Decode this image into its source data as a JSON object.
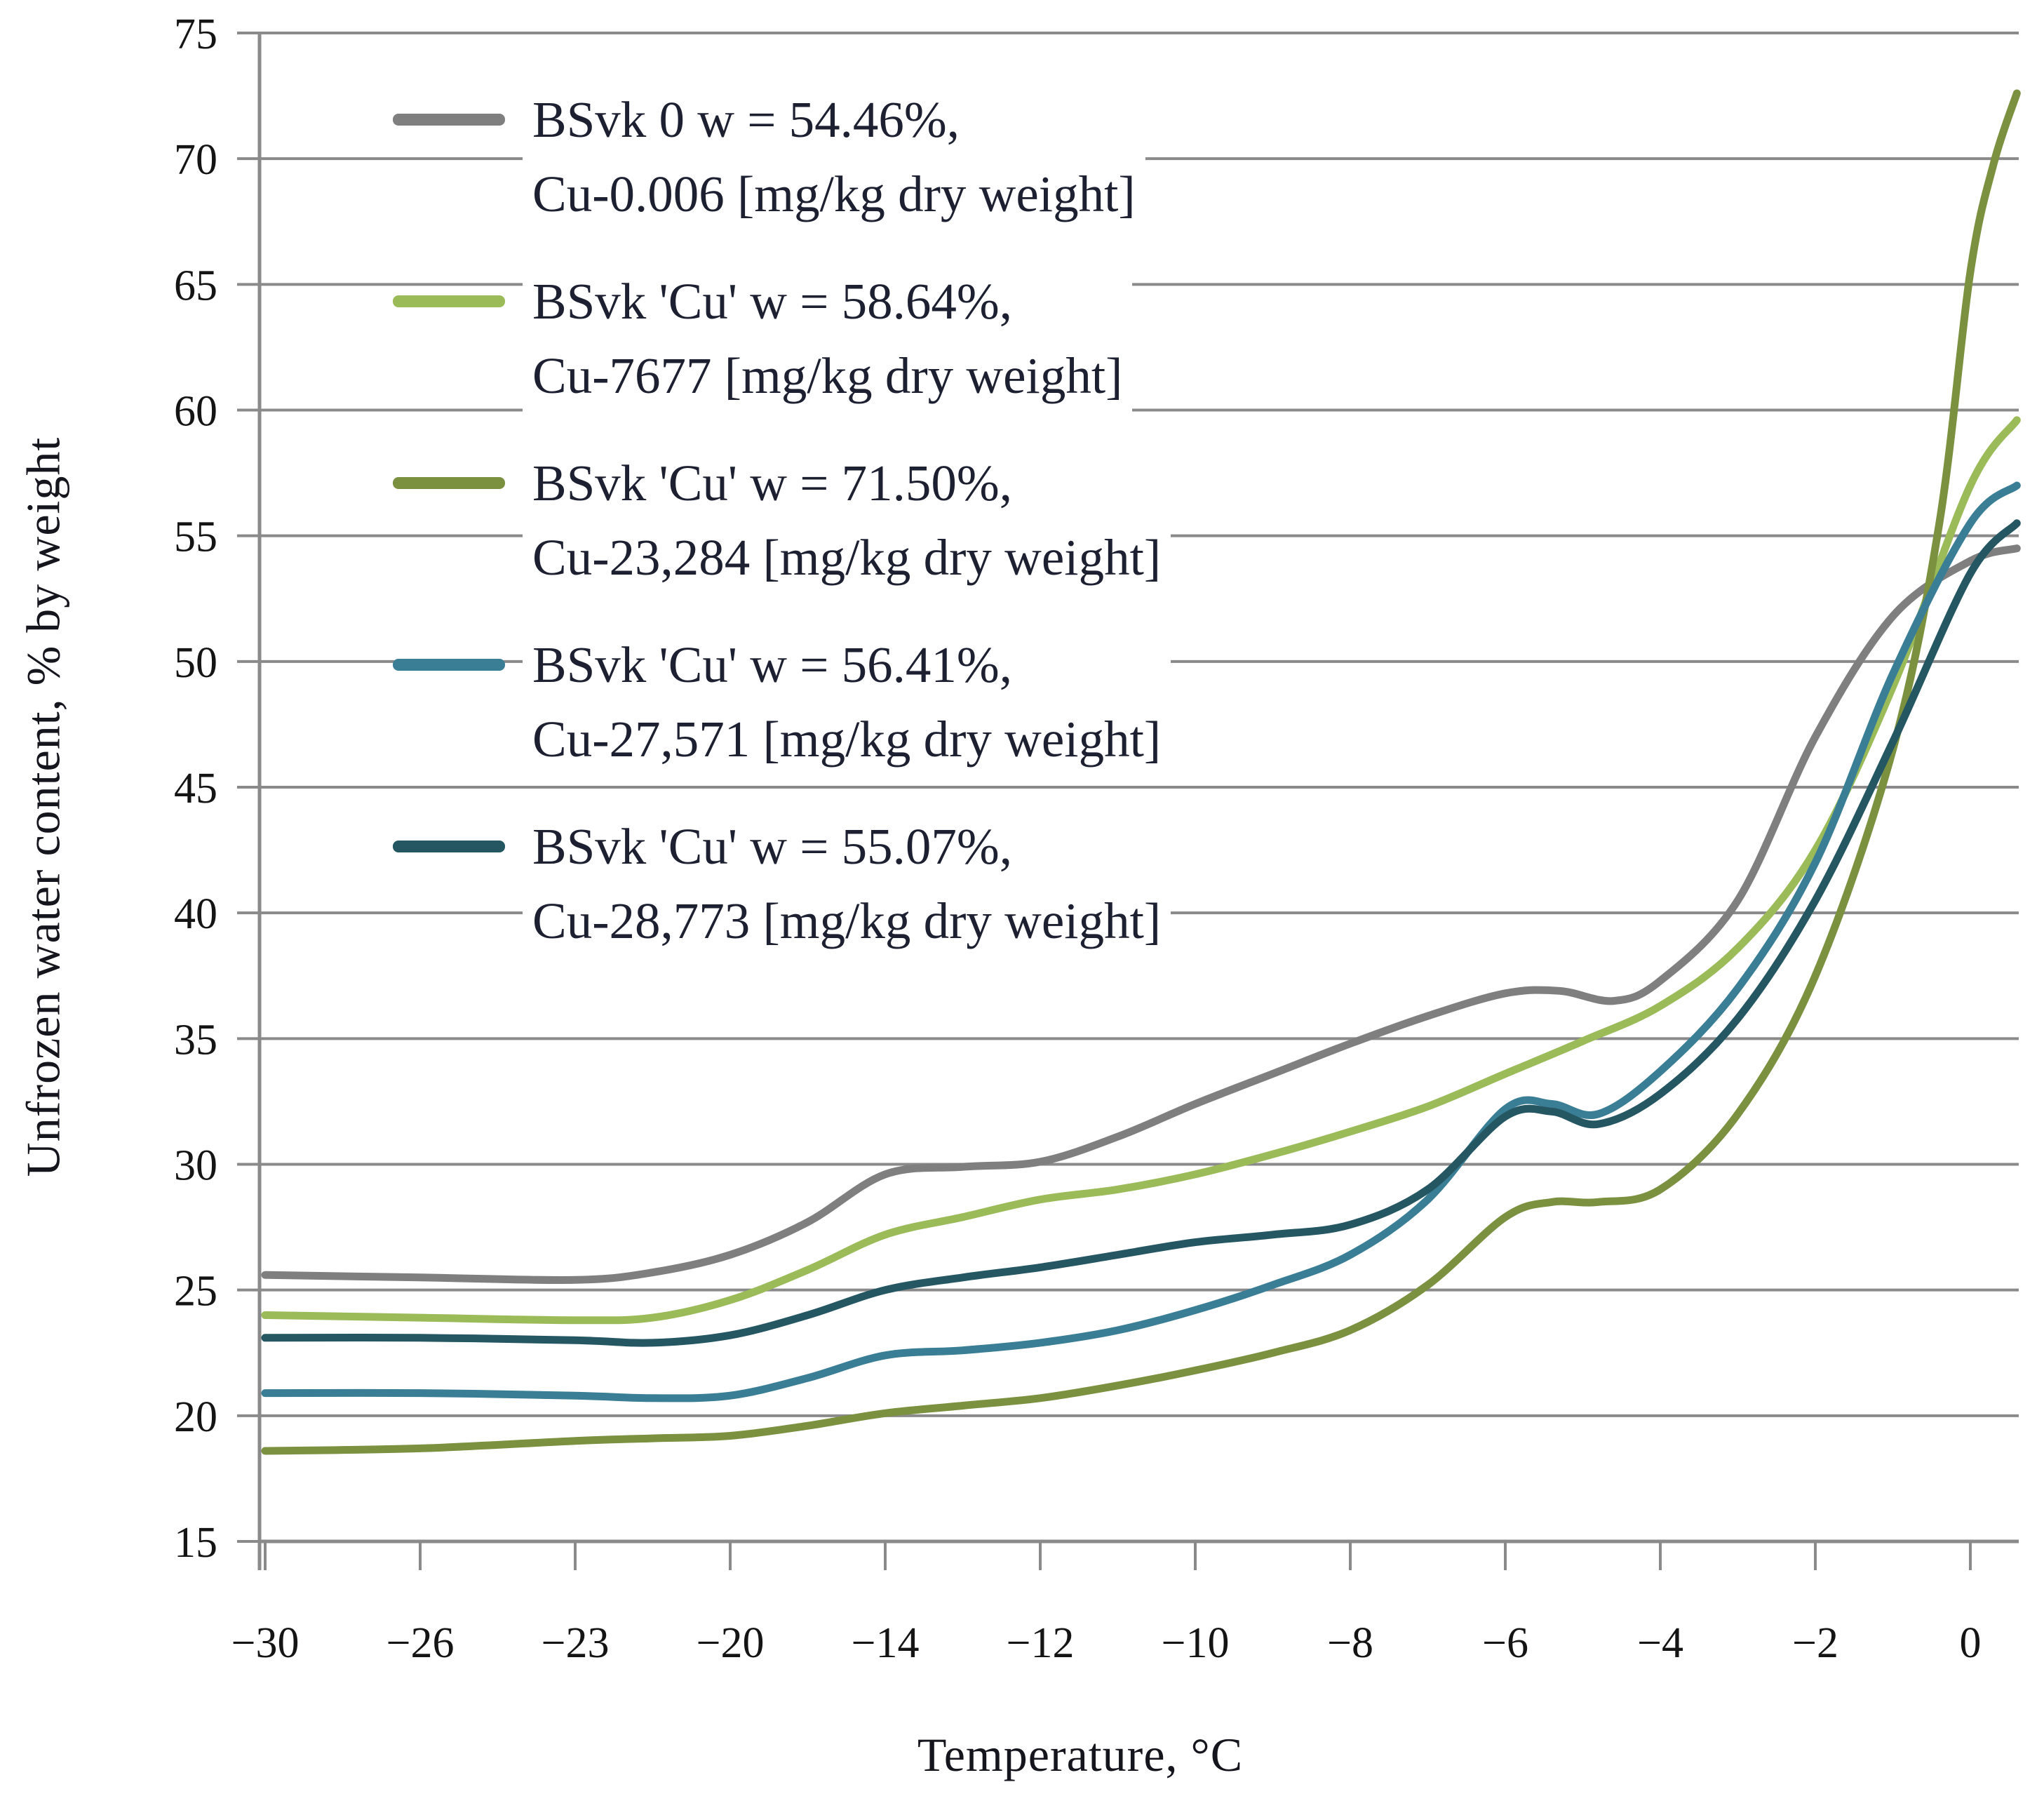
{
  "chart_data": {
    "type": "line",
    "title": "",
    "xlabel": "Temperature, °C",
    "ylabel": "Unfrozen water content, % by weight",
    "x_tick_labels": [
      "-30",
      "-26",
      "-23",
      "-20",
      "-14",
      "-12",
      "-10",
      "-8",
      "-6",
      "-4",
      "-2",
      "0"
    ],
    "ylim": [
      15,
      75
    ],
    "y_tick_step": 5,
    "grid": "horizontal gridlines at every 5 units, gray",
    "legend_position": "inside upper-left, no border, white background",
    "axis_color": "#8a8a8a",
    "text_color": "#15151e",
    "series": [
      {
        "name": "BSvk 0",
        "legend_line1": "BSvk 0  w = 54.46%,",
        "legend_line2": "Cu-0.006 [mg/kg dry weight]",
        "color": "#7f7f7f",
        "x_at_ticks": [
          -30,
          -26,
          -23,
          -20,
          -14,
          -12,
          -10,
          -8,
          -6,
          -4,
          -2,
          0
        ],
        "values_at_ticks": [
          25.6,
          25.5,
          25.4,
          26.4,
          29.6,
          30.1,
          32.4,
          34.8,
          36.8,
          37.3,
          47.0,
          54.0
        ],
        "end_value": 54.5,
        "points": [
          [
            0,
            25.6
          ],
          [
            1,
            25.5
          ],
          [
            2,
            25.4
          ],
          [
            2.5,
            25.7
          ],
          [
            3,
            26.4
          ],
          [
            3.5,
            27.7
          ],
          [
            4,
            29.6
          ],
          [
            4.5,
            29.9
          ],
          [
            5,
            30.1
          ],
          [
            5.5,
            31.1
          ],
          [
            6,
            32.4
          ],
          [
            6.5,
            33.6
          ],
          [
            7,
            34.8
          ],
          [
            7.5,
            35.9
          ],
          [
            8,
            36.8
          ],
          [
            8.35,
            36.9
          ],
          [
            8.7,
            36.5
          ],
          [
            9,
            37.3
          ],
          [
            9.5,
            40.5
          ],
          [
            10,
            47.0
          ],
          [
            10.5,
            51.8
          ],
          [
            11,
            54.0
          ],
          [
            11.3,
            54.5
          ]
        ]
      },
      {
        "name": "BSvk 'Cu' 7677",
        "legend_line1": "BSvk 'Cu'  w = 58.64%,",
        "legend_line2": "Cu-7677 [mg/kg dry weight]",
        "color": "#9bbb59",
        "x_at_ticks": [
          -30,
          -26,
          -23,
          -20,
          -14,
          -12,
          -10,
          -8,
          -6,
          -4,
          -2,
          0
        ],
        "values_at_ticks": [
          24.0,
          23.9,
          23.8,
          24.6,
          27.2,
          28.6,
          29.6,
          31.3,
          33.6,
          36.3,
          42.5,
          57.0
        ],
        "end_value": 59.6,
        "points": [
          [
            0,
            24.0
          ],
          [
            1,
            23.9
          ],
          [
            2,
            23.8
          ],
          [
            2.5,
            23.9
          ],
          [
            3,
            24.6
          ],
          [
            3.5,
            25.8
          ],
          [
            4,
            27.2
          ],
          [
            4.5,
            27.9
          ],
          [
            5,
            28.6
          ],
          [
            5.5,
            29.0
          ],
          [
            6,
            29.6
          ],
          [
            6.5,
            30.4
          ],
          [
            7,
            31.3
          ],
          [
            7.5,
            32.3
          ],
          [
            8,
            33.6
          ],
          [
            8.5,
            34.9
          ],
          [
            9,
            36.3
          ],
          [
            9.5,
            38.6
          ],
          [
            10,
            42.5
          ],
          [
            10.5,
            49.0
          ],
          [
            11,
            57.0
          ],
          [
            11.3,
            59.6
          ]
        ]
      },
      {
        "name": "BSvk 'Cu' 23284",
        "legend_line1": "BSvk 'Cu'  w = 71.50%,",
        "legend_line2": "Cu-23,284 [mg/kg dry weight]",
        "color": "#7b9140",
        "x_at_ticks": [
          -30,
          -26,
          -23,
          -20,
          -14,
          -12,
          -10,
          -8,
          -6,
          -4,
          -2,
          0
        ],
        "values_at_ticks": [
          18.6,
          18.7,
          19.0,
          19.2,
          20.1,
          20.7,
          21.8,
          23.4,
          27.9,
          29.0,
          37.5,
          65.5
        ],
        "end_value": 72.6,
        "points": [
          [
            0,
            18.6
          ],
          [
            1,
            18.7
          ],
          [
            2,
            19.0
          ],
          [
            2.5,
            19.1
          ],
          [
            3,
            19.2
          ],
          [
            3.5,
            19.6
          ],
          [
            4,
            20.1
          ],
          [
            4.5,
            20.4
          ],
          [
            5,
            20.7
          ],
          [
            5.5,
            21.2
          ],
          [
            6,
            21.8
          ],
          [
            6.5,
            22.5
          ],
          [
            7,
            23.4
          ],
          [
            7.5,
            25.2
          ],
          [
            8,
            27.9
          ],
          [
            8.3,
            28.5
          ],
          [
            8.6,
            28.5
          ],
          [
            9,
            29.0
          ],
          [
            9.5,
            32.0
          ],
          [
            10,
            37.5
          ],
          [
            10.5,
            46.5
          ],
          [
            10.8,
            55.5
          ],
          [
            11,
            65.5
          ],
          [
            11.15,
            69.8
          ],
          [
            11.3,
            72.6
          ]
        ]
      },
      {
        "name": "BSvk 'Cu' 27571",
        "legend_line1": "BSvk 'Cu'   w = 56.41%,",
        "legend_line2": "Cu-27,571 [mg/kg dry weight]",
        "color": "#3a7e95",
        "x_at_ticks": [
          -30,
          -26,
          -23,
          -20,
          -14,
          -12,
          -10,
          -8,
          -6,
          -4,
          -2,
          0
        ],
        "values_at_ticks": [
          20.9,
          20.9,
          20.8,
          20.8,
          22.4,
          22.9,
          24.2,
          26.4,
          32.2,
          33.7,
          42.0,
          55.5
        ],
        "end_value": 57.0,
        "points": [
          [
            0,
            20.9
          ],
          [
            1,
            20.9
          ],
          [
            2,
            20.8
          ],
          [
            2.5,
            20.7
          ],
          [
            3,
            20.8
          ],
          [
            3.5,
            21.5
          ],
          [
            4,
            22.4
          ],
          [
            4.5,
            22.6
          ],
          [
            5,
            22.9
          ],
          [
            5.5,
            23.4
          ],
          [
            6,
            24.2
          ],
          [
            6.5,
            25.2
          ],
          [
            7,
            26.4
          ],
          [
            7.5,
            28.6
          ],
          [
            8,
            32.2
          ],
          [
            8.3,
            32.4
          ],
          [
            8.6,
            32.0
          ],
          [
            9,
            33.7
          ],
          [
            9.5,
            37.0
          ],
          [
            10,
            42.0
          ],
          [
            10.5,
            49.5
          ],
          [
            11,
            55.5
          ],
          [
            11.3,
            57.0
          ]
        ]
      },
      {
        "name": "BSvk 'Cu' 28773",
        "legend_line1": "BSvk 'Cu'  w = 55.07%,",
        "legend_line2": "Cu-28,773 [mg/kg dry weight]",
        "color": "#255763",
        "x_at_ticks": [
          -30,
          -26,
          -23,
          -20,
          -14,
          -12,
          -10,
          -8,
          -6,
          -4,
          -2,
          0
        ],
        "values_at_ticks": [
          23.1,
          23.1,
          23.0,
          23.2,
          25.0,
          25.9,
          26.9,
          27.6,
          31.9,
          32.8,
          40.5,
          53.5
        ],
        "end_value": 55.5,
        "points": [
          [
            0,
            23.1
          ],
          [
            1,
            23.1
          ],
          [
            2,
            23.0
          ],
          [
            2.5,
            22.9
          ],
          [
            3,
            23.2
          ],
          [
            3.5,
            24.0
          ],
          [
            4,
            25.0
          ],
          [
            4.5,
            25.5
          ],
          [
            5,
            25.9
          ],
          [
            5.5,
            26.4
          ],
          [
            6,
            26.9
          ],
          [
            6.5,
            27.2
          ],
          [
            7,
            27.6
          ],
          [
            7.5,
            29.0
          ],
          [
            8,
            31.9
          ],
          [
            8.3,
            32.1
          ],
          [
            8.6,
            31.6
          ],
          [
            9,
            32.8
          ],
          [
            9.5,
            35.8
          ],
          [
            10,
            40.5
          ],
          [
            10.5,
            46.8
          ],
          [
            11,
            53.5
          ],
          [
            11.3,
            55.5
          ]
        ]
      }
    ]
  }
}
